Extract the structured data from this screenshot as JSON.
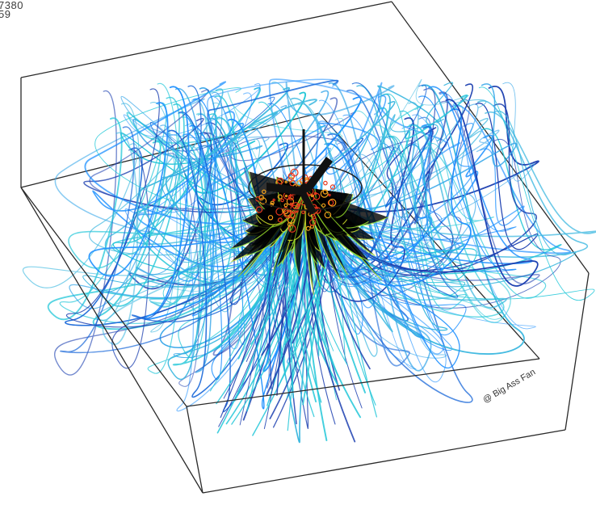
{
  "corner_label": {
    "line1": "7380",
    "line2": "59"
  },
  "watermark": {
    "text": "@ Big Ass Fan"
  },
  "colors": {
    "box_edges": "#2a2a2a",
    "streamline_outer": "#1e90ff",
    "streamline_deep": "#1c3fb0",
    "streamline_mid": "#22c7d8",
    "streamline_warm": "#9be22a",
    "core_hot": "#e8361c",
    "core_warm": "#f3a11b",
    "fan_blades": "#111111"
  },
  "scene": {
    "subject": "fan-airflow-streamlines",
    "icon": "ceiling-fan-icon"
  }
}
